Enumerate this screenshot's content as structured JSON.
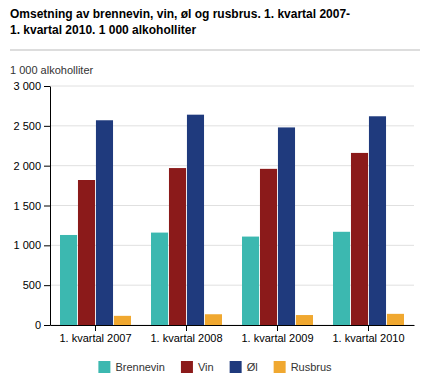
{
  "chart_data": {
    "type": "bar",
    "title": "Omsetning av brennevin, vin, øl og rusbrus. 1. kvartal 2007-\n1. kvartal 2010. 1 000 alkoholliter",
    "ylabel": "1 000 alkoholliter",
    "categories": [
      "1. kvartal 2007",
      "1. kvartal 2008",
      "1. kvartal 2009",
      "1. kvartal 2010"
    ],
    "series": [
      {
        "name": "Brennevin",
        "color": "#3cb8b0",
        "values": [
          1130,
          1160,
          1110,
          1170
        ]
      },
      {
        "name": "Vin",
        "color": "#8b1a1a",
        "values": [
          1820,
          1970,
          1960,
          2160
        ]
      },
      {
        "name": "Øl",
        "color": "#1f3a7d",
        "values": [
          2570,
          2640,
          2480,
          2620
        ]
      },
      {
        "name": "Rusbrus",
        "color": "#f0a830",
        "values": [
          115,
          135,
          125,
          140
        ]
      }
    ],
    "ylim": [
      0,
      3000
    ],
    "yticks": [
      0,
      500,
      {
        "value": 1000,
        "label": "1 000"
      },
      {
        "value": 1500,
        "label": "1 500"
      },
      {
        "value": 2000,
        "label": "2 000"
      },
      {
        "value": 2500,
        "label": "2 500"
      },
      {
        "value": 3000,
        "label": "3 000"
      }
    ],
    "grid": true,
    "legend": "bottom"
  }
}
